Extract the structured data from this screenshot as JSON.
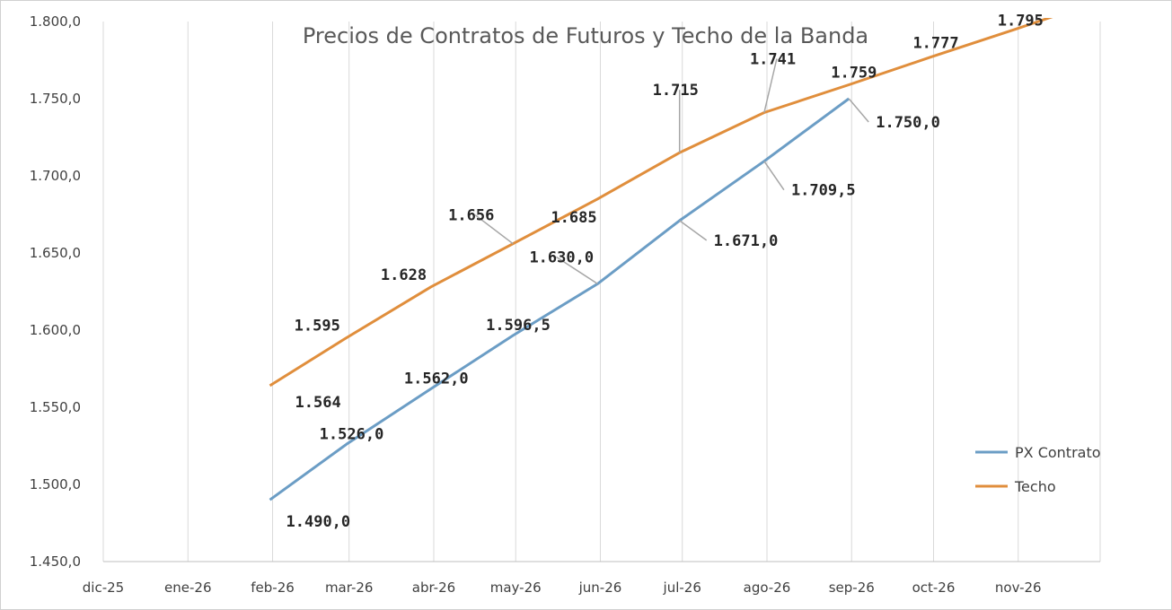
{
  "chart_data": {
    "type": "line",
    "title": "Precios de Contratos de Futuros y Techo de la Banda",
    "xlabel": "",
    "ylabel": "",
    "ylim": [
      1450,
      1800
    ],
    "y_ticks": [
      "1.450,0",
      "1.500,0",
      "1.550,0",
      "1.600,0",
      "1.650,0",
      "1.700,0",
      "1.750,0",
      "1.800,0"
    ],
    "y_tick_values": [
      1450,
      1500,
      1550,
      1600,
      1650,
      1700,
      1750,
      1800
    ],
    "x_ticks": [
      "dic-25",
      "ene-26",
      "feb-26",
      "mar-26",
      "abr-26",
      "may-26",
      "jun-26",
      "jul-26",
      "ago-26",
      "sep-26",
      "oct-26",
      "nov-26"
    ],
    "x_tick_dates": [
      "2025-12-01",
      "2026-01-01",
      "2026-02-01",
      "2026-03-01",
      "2026-04-01",
      "2026-05-01",
      "2026-06-01",
      "2026-07-01",
      "2026-08-01",
      "2026-09-01",
      "2026-10-01",
      "2026-11-01"
    ],
    "grid": "vertical",
    "legend_position": "bottom-right",
    "series": [
      {
        "name": "PX Contrato",
        "color": "#6b9dc5",
        "x": [
          "2026-01-31",
          "2026-02-28",
          "2026-03-31",
          "2026-04-30",
          "2026-05-31",
          "2026-06-30",
          "2026-07-31",
          "2026-08-31"
        ],
        "values": [
          1490.0,
          1526.0,
          1562.0,
          1596.5,
          1630.0,
          1671.0,
          1709.5,
          1750.0
        ],
        "labels": [
          "1.490,0",
          "1.526,0",
          "1.562,0",
          "1.596,5",
          "1.630,0",
          "1.671,0",
          "1.709,5",
          "1.750,0"
        ]
      },
      {
        "name": "Techo",
        "color": "#e08e3c",
        "x": [
          "2026-01-31",
          "2026-02-28",
          "2026-03-31",
          "2026-04-30",
          "2026-05-31",
          "2026-06-30",
          "2026-07-31",
          "2026-08-31",
          "2026-09-30",
          "2026-10-31",
          "2026-11-30"
        ],
        "values": [
          1564,
          1595,
          1628,
          1656,
          1685,
          1715,
          1741,
          1759,
          1777,
          1795,
          1813
        ],
        "labels": [
          "1.564",
          "1.595",
          "1.628",
          "1.656",
          "1.685",
          "1.715",
          "1.741",
          "1.759",
          "1.777",
          "1.795",
          ""
        ]
      }
    ]
  }
}
